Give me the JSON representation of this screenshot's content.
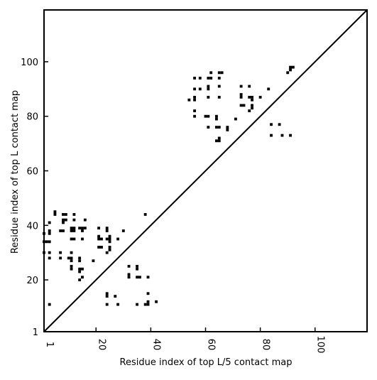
{
  "chart_data": {
    "type": "scatter",
    "title": "",
    "xlabel": "Residue index of top L/5 contact map",
    "ylabel": "Residue index of top L contact map",
    "xlim": [
      1,
      119
    ],
    "ylim": [
      1,
      119
    ],
    "xticks": [
      1,
      20,
      40,
      60,
      80,
      100
    ],
    "yticks": [
      1,
      20,
      40,
      60,
      80,
      100
    ],
    "xtick_labels": [
      "1",
      "20",
      "40",
      "60",
      "80",
      "100"
    ],
    "ytick_labels": [
      "1",
      "20",
      "40",
      "60",
      "80",
      "100"
    ],
    "grid": false,
    "diagonal": true,
    "marker": "square",
    "marker_color": "#000000",
    "series": [
      {
        "region": "upper-left",
        "points": [
          [
            5,
            45
          ],
          [
            5,
            44
          ],
          [
            8,
            44
          ],
          [
            9,
            44
          ],
          [
            12,
            44
          ],
          [
            8,
            42
          ],
          [
            9,
            42
          ],
          [
            12,
            42
          ],
          [
            16,
            42
          ],
          [
            8,
            41
          ],
          [
            3,
            41
          ],
          [
            3,
            38
          ],
          [
            3,
            37
          ],
          [
            7,
            38
          ],
          [
            8,
            38
          ],
          [
            11,
            39
          ],
          [
            12,
            39
          ],
          [
            14,
            39
          ],
          [
            15,
            39
          ],
          [
            16,
            39
          ],
          [
            11,
            38
          ],
          [
            12,
            38
          ],
          [
            15,
            38
          ],
          [
            1,
            37
          ],
          [
            21,
            39
          ],
          [
            24,
            39
          ],
          [
            24,
            38
          ],
          [
            30,
            38
          ],
          [
            38,
            44
          ],
          [
            11,
            35
          ],
          [
            12,
            35
          ],
          [
            15,
            35
          ],
          [
            21,
            36
          ],
          [
            21,
            35
          ],
          [
            22,
            35
          ],
          [
            24,
            35
          ],
          [
            25,
            36
          ],
          [
            25,
            35
          ],
          [
            25,
            34
          ],
          [
            28,
            35
          ],
          [
            1,
            34
          ],
          [
            2,
            34
          ],
          [
            3,
            34
          ],
          [
            21,
            32
          ],
          [
            22,
            32
          ],
          [
            25,
            32
          ],
          [
            25,
            31
          ],
          [
            24,
            30
          ],
          [
            1,
            30
          ],
          [
            3,
            30
          ],
          [
            7,
            30
          ],
          [
            11,
            30
          ],
          [
            3,
            28
          ],
          [
            7,
            28
          ],
          [
            10,
            28
          ],
          [
            11,
            28
          ],
          [
            11,
            27
          ],
          [
            14,
            28
          ],
          [
            14,
            27
          ],
          [
            19,
            27
          ],
          [
            11,
            25
          ],
          [
            11,
            24
          ],
          [
            14,
            24
          ],
          [
            15,
            24
          ],
          [
            14,
            23
          ],
          [
            14,
            20
          ],
          [
            15,
            21
          ],
          [
            32,
            25
          ],
          [
            35,
            25
          ],
          [
            35,
            24
          ],
          [
            32,
            22
          ],
          [
            32,
            21
          ],
          [
            35,
            21
          ],
          [
            36,
            21
          ],
          [
            39,
            21
          ],
          [
            3,
            11
          ],
          [
            24,
            15
          ],
          [
            24,
            14
          ],
          [
            27,
            14
          ],
          [
            39,
            15
          ],
          [
            24,
            11
          ],
          [
            28,
            11
          ],
          [
            35,
            11
          ],
          [
            38,
            11
          ],
          [
            39,
            12
          ],
          [
            42,
            12
          ],
          [
            39,
            11
          ]
        ]
      },
      {
        "region": "upper-right",
        "points": [
          [
            56,
            94
          ],
          [
            58,
            94
          ],
          [
            61,
            94
          ],
          [
            62,
            94
          ],
          [
            65,
            94
          ],
          [
            62,
            96
          ],
          [
            65,
            96
          ],
          [
            66,
            96
          ],
          [
            56,
            90
          ],
          [
            58,
            90
          ],
          [
            61,
            91
          ],
          [
            61,
            90
          ],
          [
            65,
            91
          ],
          [
            54,
            86
          ],
          [
            56,
            87
          ],
          [
            56,
            86
          ],
          [
            61,
            87
          ],
          [
            65,
            87
          ],
          [
            56,
            82
          ],
          [
            56,
            80
          ],
          [
            60,
            80
          ],
          [
            61,
            80
          ],
          [
            64,
            80
          ],
          [
            64,
            79
          ],
          [
            61,
            76
          ],
          [
            64,
            76
          ],
          [
            65,
            76
          ],
          [
            68,
            76
          ],
          [
            68,
            75
          ],
          [
            64,
            71
          ],
          [
            65,
            72
          ],
          [
            65,
            71
          ],
          [
            71,
            79
          ],
          [
            73,
            91
          ],
          [
            76,
            91
          ],
          [
            73,
            88
          ],
          [
            73,
            87
          ],
          [
            76,
            87
          ],
          [
            77,
            87
          ],
          [
            77,
            86
          ],
          [
            80,
            87
          ],
          [
            83,
            90
          ],
          [
            73,
            84
          ],
          [
            74,
            84
          ],
          [
            77,
            84
          ],
          [
            77,
            83
          ],
          [
            76,
            82
          ],
          [
            84,
            77
          ],
          [
            84,
            73
          ],
          [
            87,
            77
          ],
          [
            88,
            73
          ],
          [
            91,
            73
          ],
          [
            90,
            96
          ],
          [
            91,
            98
          ],
          [
            92,
            98
          ],
          [
            91,
            97
          ]
        ]
      }
    ]
  }
}
